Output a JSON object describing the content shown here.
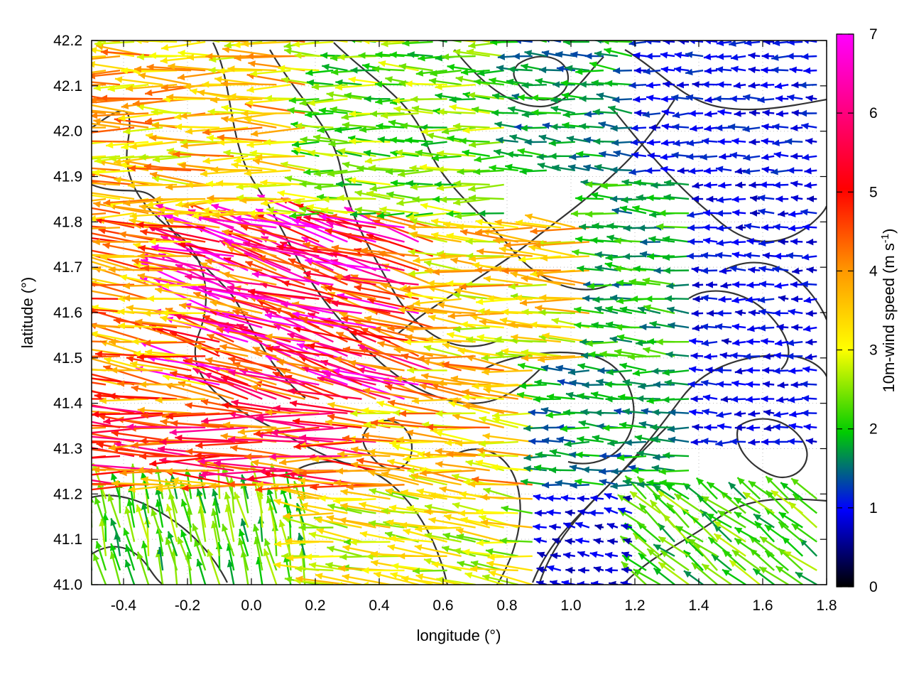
{
  "chart_data": {
    "type": "vector-field",
    "xlabel": "longitude (°)",
    "ylabel": "latitude (°)",
    "xlim": [
      -0.5,
      1.8
    ],
    "ylim": [
      41.0,
      42.2
    ],
    "xticks": [
      "-0.4",
      "-0.2",
      "0.0",
      "0.2",
      "0.4",
      "0.6",
      "0.8",
      "1.0",
      "1.2",
      "1.4",
      "1.6",
      "1.8"
    ],
    "xtick_values": [
      -0.4,
      -0.2,
      0.0,
      0.2,
      0.4,
      0.6,
      0.8,
      1.0,
      1.2,
      1.4,
      1.6,
      1.8
    ],
    "yticks": [
      "41.0",
      "41.1",
      "41.2",
      "41.3",
      "41.4",
      "41.5",
      "41.6",
      "41.7",
      "41.8",
      "41.9",
      "42.0",
      "42.1",
      "42.2"
    ],
    "ytick_values": [
      41.0,
      41.1,
      41.2,
      41.3,
      41.4,
      41.5,
      41.6,
      41.7,
      41.8,
      41.9,
      42.0,
      42.1,
      42.2
    ],
    "grid": "dotted",
    "colorbar": {
      "label": "10m-wind speed (m s-1)",
      "label_main": "10m-wind speed (m s",
      "label_sup": "-1",
      "label_end": ")",
      "range": [
        0,
        7
      ],
      "ticks": [
        "0",
        "1",
        "2",
        "3",
        "4",
        "5",
        "6",
        "7"
      ],
      "colors": [
        "#000000",
        "#0000ff",
        "#00cc00",
        "#ffff00",
        "#ff9900",
        "#ff0000",
        "#ff00ff"
      ]
    },
    "regions": [
      {
        "lon": [
          -0.5,
          0.2
        ],
        "lat": [
          41.8,
          42.2
        ],
        "u": -4.2,
        "v": 0.1,
        "speed": 4.2
      },
      {
        "lon": [
          0.2,
          0.8
        ],
        "lat": [
          41.8,
          42.2
        ],
        "u": -2.8,
        "v": 0.1,
        "speed": 2.8
      },
      {
        "lon": [
          0.8,
          1.2
        ],
        "lat": [
          41.9,
          42.2
        ],
        "u": -2.0,
        "v": 0.2,
        "speed": 2.0
      },
      {
        "lon": [
          1.2,
          1.8
        ],
        "lat": [
          41.9,
          42.2
        ],
        "u": -1.2,
        "v": 0.0,
        "speed": 1.2
      },
      {
        "lon": [
          -0.5,
          -0.1
        ],
        "lat": [
          41.4,
          41.8
        ],
        "u": -4.5,
        "v": 0.6,
        "speed": 4.6
      },
      {
        "lon": [
          -0.1,
          0.6
        ],
        "lat": [
          41.4,
          41.8
        ],
        "u": -5.6,
        "v": 1.6,
        "speed": 5.8
      },
      {
        "lon": [
          0.6,
          1.1
        ],
        "lat": [
          41.5,
          41.8
        ],
        "u": -4.0,
        "v": 0.3,
        "speed": 4.0
      },
      {
        "lon": [
          1.1,
          1.4
        ],
        "lat": [
          41.5,
          41.9
        ],
        "u": -2.2,
        "v": 0.2,
        "speed": 2.2
      },
      {
        "lon": [
          1.4,
          1.8
        ],
        "lat": [
          41.3,
          41.9
        ],
        "u": -1.1,
        "v": 0.0,
        "speed": 1.1
      },
      {
        "lon": [
          -0.5,
          0.4
        ],
        "lat": [
          41.2,
          41.4
        ],
        "u": -5.3,
        "v": 0.2,
        "speed": 5.3
      },
      {
        "lon": [
          0.4,
          0.9
        ],
        "lat": [
          41.2,
          41.5
        ],
        "u": -4.3,
        "v": 0.4,
        "speed": 4.3
      },
      {
        "lon": [
          0.9,
          1.4
        ],
        "lat": [
          41.2,
          41.5
        ],
        "u": -2.0,
        "v": 0.1,
        "speed": 2.0
      },
      {
        "lon": [
          -0.5,
          0.2
        ],
        "lat": [
          41.0,
          41.2
        ],
        "u": -0.5,
        "v": 2.5,
        "speed": 2.6
      },
      {
        "lon": [
          0.2,
          0.9
        ],
        "lat": [
          41.0,
          41.2
        ],
        "u": -3.5,
        "v": 0.4,
        "speed": 3.5
      },
      {
        "lon": [
          0.9,
          1.2
        ],
        "lat": [
          41.0,
          41.2
        ],
        "u": -1.0,
        "v": 0.2,
        "speed": 1.0
      },
      {
        "lon": [
          1.2,
          1.8
        ],
        "lat": [
          41.0,
          41.2
        ],
        "u": -2.0,
        "v": 1.6,
        "speed": 2.6
      }
    ]
  }
}
